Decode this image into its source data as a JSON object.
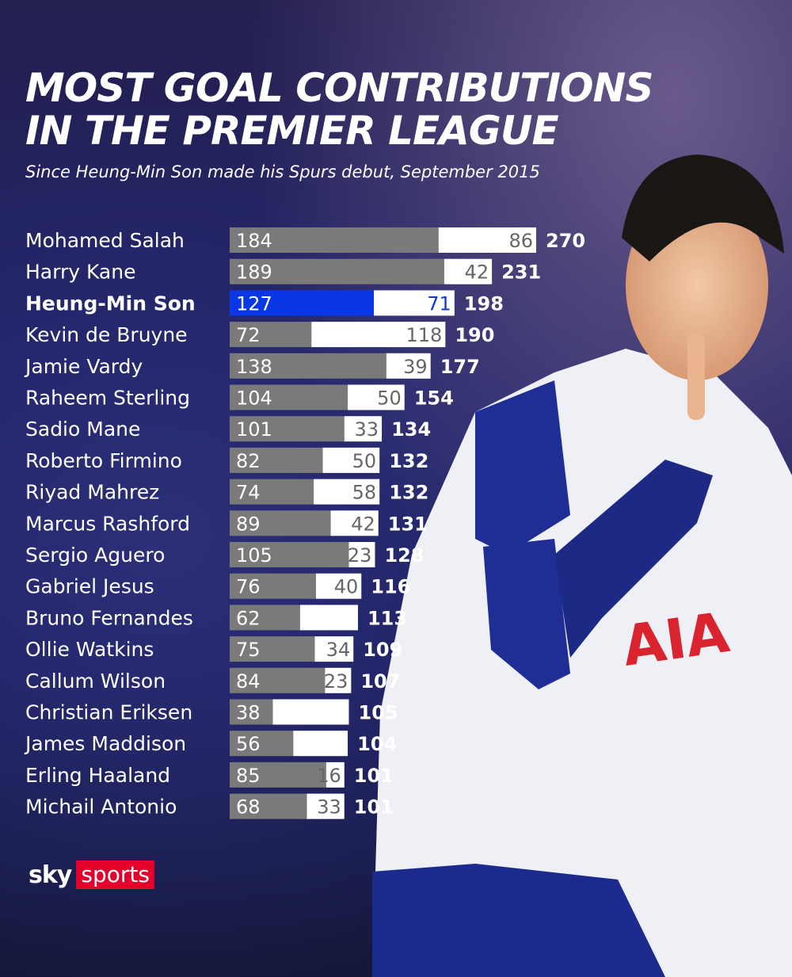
{
  "header": {
    "title_line1": "MOST GOAL CONTRIBUTIONS",
    "title_line2": "IN THE PREMIER LEAGUE",
    "subtitle": "Since Heung-Min Son made his Spurs debut, September 2015"
  },
  "logo": {
    "sky": "sky",
    "sports": "sports"
  },
  "colors": {
    "segment1": "#7a7a7a",
    "segment2": "#ffffff",
    "highlight": "#0a37e6",
    "highlight_text": "#0a37e6",
    "brand_red": "#e4002b"
  },
  "chart_data": {
    "type": "bar",
    "orientation": "horizontal",
    "stacked": true,
    "categories": [
      "Mohamed Salah",
      "Harry Kane",
      "Heung-Min Son",
      "Kevin de Bruyne",
      "Jamie Vardy",
      "Raheem Sterling",
      "Sadio Mane",
      "Roberto Firmino",
      "Riyad Mahrez",
      "Marcus Rashford",
      "Sergio Aguero",
      "Gabriel Jesus",
      "Bruno Fernandes",
      "Ollie Watkins",
      "Callum Wilson",
      "Christian Eriksen",
      "James Maddison",
      "Erling Haaland",
      "Michail Antonio"
    ],
    "highlighted_category": "Heung-Min Son",
    "series": [
      {
        "values": [
          184,
          189,
          127,
          72,
          138,
          104,
          101,
          82,
          74,
          89,
          105,
          76,
          62,
          75,
          84,
          38,
          56,
          85,
          68
        ],
        "labels": [
          "184",
          "189",
          "127",
          "72",
          "138",
          "104",
          "101",
          "82",
          "74",
          "89",
          "105",
          "76",
          "62",
          "75",
          "84",
          "38",
          "56",
          "85",
          "68"
        ]
      },
      {
        "values": [
          86,
          42,
          71,
          118,
          39,
          50,
          33,
          50,
          58,
          42,
          23,
          40,
          51,
          34,
          23,
          67,
          48,
          16,
          33
        ],
        "labels": [
          "86",
          "42",
          "71",
          "118",
          "39",
          "50",
          "33",
          "50",
          "58",
          "42",
          "23",
          "40",
          "",
          "34",
          "23",
          "",
          "",
          "16",
          "33"
        ]
      }
    ],
    "totals": [
      "270",
      "231",
      "198",
      "190",
      "177",
      "154",
      "134",
      "132",
      "132",
      "131",
      "128",
      "116",
      "113",
      "109",
      "107",
      "105",
      "104",
      "101",
      "101"
    ],
    "grid": false
  }
}
